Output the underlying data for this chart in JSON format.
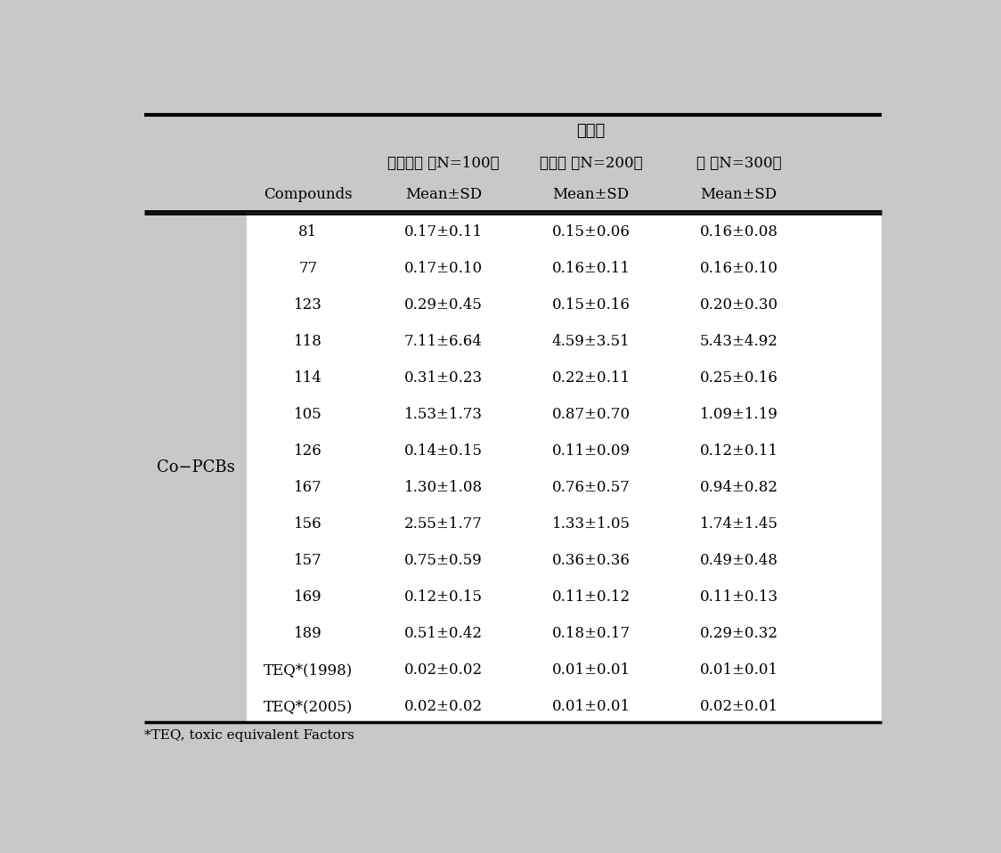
{
  "header_bg_color": "#c8c8c8",
  "table_bg_color": "#ffffff",
  "outer_bg_color": "#c8c8c8",
  "header_row1_text": "환자군",
  "header_row2": [
    "전립선암 （N=100）",
    "유방암 （N=200）",
    "계 （N=300）"
  ],
  "header_row3": [
    "Compounds",
    "Mean±SD",
    "Mean±SD",
    "Mean±SD"
  ],
  "left_label": "Co−PCBs",
  "compounds": [
    "81",
    "77",
    "123",
    "118",
    "114",
    "105",
    "126",
    "167",
    "156",
    "157",
    "169",
    "189",
    "TEQ*(1998)",
    "TEQ*(2005)"
  ],
  "col1": [
    "0.17±0.11",
    "0.17±0.10",
    "0.29±0.45",
    "7.11±6.64",
    "0.31±0.23",
    "1.53±1.73",
    "0.14±0.15",
    "1.30±1.08",
    "2.55±1.77",
    "0.75±0.59",
    "0.12±0.15",
    "0.51±0.42",
    "0.02±0.02",
    "0.02±0.02"
  ],
  "col2": [
    "0.15±0.06",
    "0.16±0.11",
    "0.15±0.16",
    "4.59±3.51",
    "0.22±0.11",
    "0.87±0.70",
    "0.11±0.09",
    "0.76±0.57",
    "1.33±1.05",
    "0.36±0.36",
    "0.11±0.12",
    "0.18±0.17",
    "0.01±0.01",
    "0.01±0.01"
  ],
  "col3": [
    "0.16±0.08",
    "0.16±0.10",
    "0.20±0.30",
    "5.43±4.92",
    "0.25±0.16",
    "1.09±1.19",
    "0.12±0.11",
    "0.94±0.82",
    "1.74±1.45",
    "0.49±0.48",
    "0.11±0.13",
    "0.29±0.32",
    "0.01±0.01",
    "0.02±0.01"
  ],
  "footnote": "*TEQ, toxic equivalent Factors",
  "font_size_title": 13,
  "font_size_subheader": 12,
  "font_size_colheader": 12,
  "font_size_data": 12,
  "font_size_label": 13,
  "font_size_footnote": 11
}
